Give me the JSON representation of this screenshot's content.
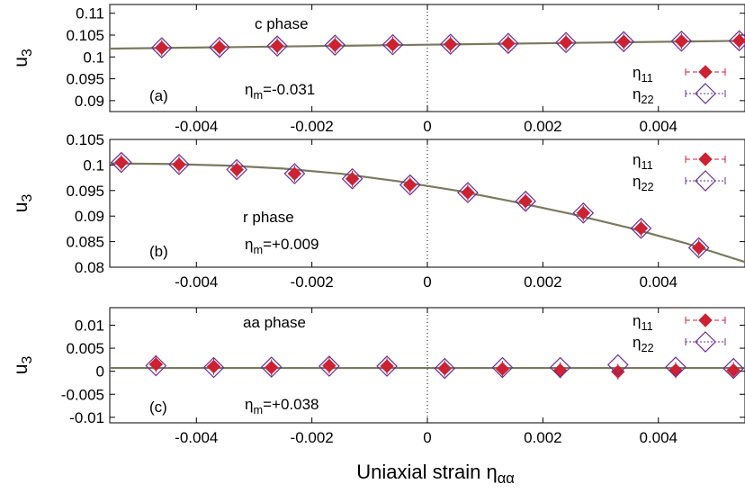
{
  "chart_data": [
    {
      "type": "scatter",
      "panel_label": "(a)",
      "phase_text": "c phase",
      "eta_text": "=-0.031",
      "ylabel": "u",
      "ylabel_sub": "3",
      "xlim": [
        -0.0055,
        0.0055
      ],
      "ylim": [
        0.0875,
        0.112
      ],
      "y_ticks": [
        "0.11",
        "0.105",
        "0.1",
        "0.095",
        "0.09"
      ],
      "x_ticks": [
        "-0.004",
        "-0.002",
        "0",
        "0.002",
        "0.004"
      ],
      "fit_line": {
        "x": [
          -0.0055,
          0.0,
          0.0055
        ],
        "y": [
          0.1019,
          0.1028,
          0.1037
        ]
      },
      "series": [
        {
          "name": "η11",
          "marker": "filled-diamond",
          "x": [
            -0.0046,
            -0.0036,
            -0.0026,
            -0.0016,
            -0.0006,
            0.0004,
            0.0014,
            0.0024,
            0.0034,
            0.0044,
            0.0054
          ],
          "y": [
            0.1021,
            0.1022,
            0.1025,
            0.1027,
            0.1028,
            0.1029,
            0.1031,
            0.1033,
            0.1035,
            0.1036,
            0.1037
          ]
        },
        {
          "name": "η22",
          "marker": "open-diamond",
          "x": [
            -0.0046,
            -0.0036,
            -0.0026,
            -0.0016,
            -0.0006,
            0.0004,
            0.0014,
            0.0024,
            0.0034,
            0.0044,
            0.0054
          ],
          "y": [
            0.1021,
            0.1022,
            0.1025,
            0.1027,
            0.1028,
            0.1029,
            0.1031,
            0.1033,
            0.1035,
            0.1036,
            0.1037
          ]
        }
      ]
    },
    {
      "type": "scatter",
      "panel_label": "(b)",
      "phase_text": "r phase",
      "eta_text": "=+0.009",
      "ylabel": "u",
      "ylabel_sub": "3",
      "xlim": [
        -0.0055,
        0.0055
      ],
      "ylim": [
        0.08,
        0.105
      ],
      "y_ticks": [
        "0.105",
        "0.1",
        "0.095",
        "0.09",
        "0.085",
        "0.08"
      ],
      "x_ticks": [
        "-0.004",
        "-0.002",
        "0",
        "0.002",
        "0.004"
      ],
      "fit_line": {
        "x": [
          -0.0055,
          -0.0045,
          -0.0035,
          -0.0025,
          -0.0015,
          -0.0005,
          0.0005,
          0.0015,
          0.0025,
          0.0035,
          0.0045,
          0.0055
        ],
        "y": [
          0.1003,
          0.1002,
          0.0999,
          0.0993,
          0.0983,
          0.0968,
          0.095,
          0.0928,
          0.0904,
          0.0877,
          0.0846,
          0.081
        ]
      },
      "series": [
        {
          "name": "η11",
          "marker": "filled-diamond",
          "x": [
            -0.0053,
            -0.0043,
            -0.0033,
            -0.0023,
            -0.0013,
            -0.0003,
            0.0007,
            0.0017,
            0.0027,
            0.0037,
            0.0047
          ],
          "y": [
            0.1005,
            0.1001,
            0.0991,
            0.0983,
            0.0973,
            0.0961,
            0.0946,
            0.0929,
            0.0906,
            0.0876,
            0.0838
          ]
        },
        {
          "name": "η22",
          "marker": "open-diamond",
          "x": [
            -0.0053,
            -0.0043,
            -0.0033,
            -0.0023,
            -0.0013,
            -0.0003,
            0.0007,
            0.0017,
            0.0027,
            0.0037,
            0.0047
          ],
          "y": [
            0.1005,
            0.1001,
            0.0991,
            0.0983,
            0.0973,
            0.0961,
            0.0946,
            0.0929,
            0.0906,
            0.0876,
            0.0838
          ]
        }
      ]
    },
    {
      "type": "scatter",
      "panel_label": "(c)",
      "phase_text": "aa phase",
      "eta_text": "=+0.038",
      "ylabel": "u",
      "ylabel_sub": "3",
      "xlim": [
        -0.0055,
        0.0055
      ],
      "ylim": [
        -0.0112,
        0.0138
      ],
      "y_ticks": [
        "0.01",
        "0.005",
        "0",
        "-0.005",
        "-0.01"
      ],
      "x_ticks": [
        "-0.004",
        "-0.002",
        "0",
        "0.002",
        "0.004"
      ],
      "fit_line": {
        "x": [
          -0.0055,
          0.0055
        ],
        "y": [
          0.0007,
          0.0007
        ]
      },
      "series": [
        {
          "name": "η11",
          "marker": "filled-diamond",
          "x": [
            -0.0047,
            -0.0037,
            -0.0027,
            -0.0017,
            -0.0007,
            0.0003,
            0.0013,
            0.0023,
            0.0033,
            0.0043,
            0.0053
          ],
          "y": [
            0.0015,
            0.001,
            0.0008,
            0.0012,
            0.0011,
            0.0006,
            0.0005,
            0.0002,
            -0.0001,
            0.0002,
            0.0002
          ]
        },
        {
          "name": "η22",
          "marker": "open-diamond",
          "x": [
            -0.0047,
            -0.0037,
            -0.0027,
            -0.0017,
            -0.0007,
            0.0003,
            0.0013,
            0.0023,
            0.0033,
            0.0043,
            0.0053
          ],
          "y": [
            0.0012,
            0.0008,
            0.0009,
            0.0011,
            0.0011,
            0.0006,
            0.0008,
            0.0008,
            0.0014,
            0.0009,
            0.0006
          ]
        }
      ]
    }
  ],
  "legend": {
    "entry1_base": "η",
    "entry1_sub": "11",
    "entry2_base": "η",
    "entry2_sub": "22"
  },
  "eta_m_base": "η",
  "eta_m_sub": "m",
  "xlabel_main": "Uniaxial strain η",
  "xlabel_sub": "αα",
  "colors": {
    "eta11": "#cc2233",
    "eta22": "#6a2c91",
    "fit": "#7a7a60",
    "axis": "#000000"
  }
}
